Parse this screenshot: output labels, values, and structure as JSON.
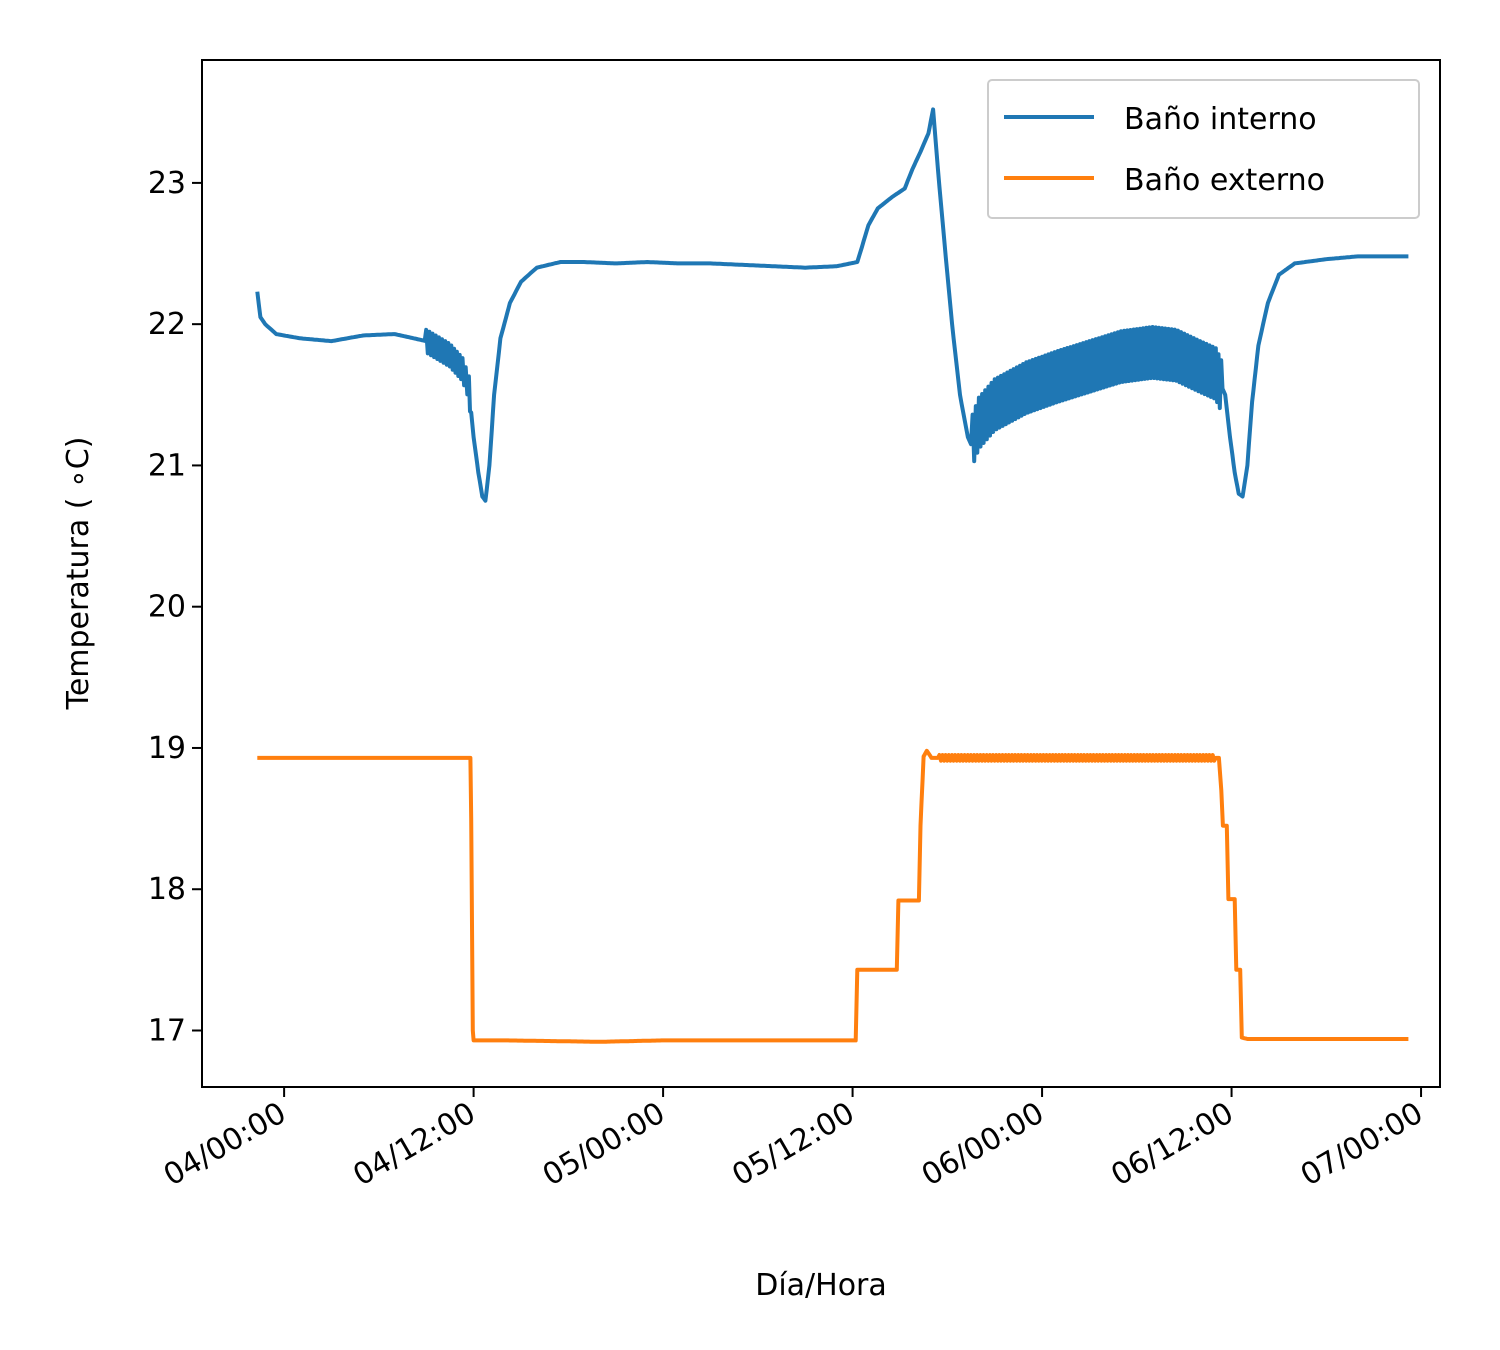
{
  "chart_data": {
    "type": "line",
    "xlabel": "Día/Hora",
    "ylabel": "Temperatura ($^\\circ$C)",
    "ylabel_display": "Temperatura ( ∘C)",
    "x_unit": "hours since 04/00:00",
    "xlim": [
      -5.2,
      73.2
    ],
    "ylim": [
      16.6,
      23.87
    ],
    "x_ticks": [
      {
        "value": 0,
        "label": "04/00:00"
      },
      {
        "value": 12,
        "label": "04/12:00"
      },
      {
        "value": 24,
        "label": "05/00:00"
      },
      {
        "value": 36,
        "label": "05/12:00"
      },
      {
        "value": 48,
        "label": "06/00:00"
      },
      {
        "value": 60,
        "label": "06/12:00"
      },
      {
        "value": 72,
        "label": "07/00:00"
      }
    ],
    "y_ticks": [
      17,
      18,
      19,
      20,
      21,
      22,
      23
    ],
    "grid": false,
    "legend_position": "top-right",
    "series": [
      {
        "name": "Baño interno",
        "color": "#1f77b4",
        "points": [
          [
            -1.7,
            22.23
          ],
          [
            -1.5,
            22.05
          ],
          [
            -1.2,
            22.0
          ],
          [
            -0.5,
            21.93
          ],
          [
            1,
            21.9
          ],
          [
            3,
            21.88
          ],
          [
            5,
            21.92
          ],
          [
            7,
            21.93
          ],
          [
            9,
            21.88
          ],
          [
            10.5,
            21.78
          ],
          [
            11.3,
            21.68
          ],
          [
            11.7,
            21.55
          ],
          [
            12.0,
            21.2
          ],
          [
            12.3,
            20.95
          ],
          [
            12.55,
            20.78
          ],
          [
            12.75,
            20.75
          ],
          [
            13.0,
            21.0
          ],
          [
            13.3,
            21.5
          ],
          [
            13.7,
            21.9
          ],
          [
            14.3,
            22.15
          ],
          [
            15.0,
            22.3
          ],
          [
            16.0,
            22.4
          ],
          [
            17.5,
            22.44
          ],
          [
            19,
            22.44
          ],
          [
            21,
            22.43
          ],
          [
            23,
            22.44
          ],
          [
            25,
            22.43
          ],
          [
            27,
            22.43
          ],
          [
            29,
            22.42
          ],
          [
            31,
            22.41
          ],
          [
            33,
            22.4
          ],
          [
            35,
            22.41
          ],
          [
            36.3,
            22.44
          ],
          [
            36.6,
            22.55
          ],
          [
            37.0,
            22.7
          ],
          [
            37.6,
            22.82
          ],
          [
            38.5,
            22.9
          ],
          [
            39.3,
            22.96
          ],
          [
            39.8,
            23.1
          ],
          [
            40.3,
            23.22
          ],
          [
            40.8,
            23.35
          ],
          [
            41.1,
            23.52
          ],
          [
            41.4,
            23.1
          ],
          [
            41.8,
            22.6
          ],
          [
            42.3,
            22.0
          ],
          [
            42.8,
            21.5
          ],
          [
            43.3,
            21.2
          ],
          [
            43.5,
            21.15
          ],
          [
            44.0,
            21.3
          ],
          [
            45.0,
            21.43
          ],
          [
            47.0,
            21.55
          ],
          [
            49.0,
            21.63
          ],
          [
            51.0,
            21.7
          ],
          [
            53.0,
            21.77
          ],
          [
            55.0,
            21.8
          ],
          [
            56.5,
            21.78
          ],
          [
            58.0,
            21.7
          ],
          [
            59.0,
            21.65
          ],
          [
            59.6,
            21.5
          ],
          [
            59.9,
            21.2
          ],
          [
            60.2,
            20.95
          ],
          [
            60.45,
            20.8
          ],
          [
            60.7,
            20.78
          ],
          [
            61.0,
            21.0
          ],
          [
            61.3,
            21.45
          ],
          [
            61.7,
            21.85
          ],
          [
            62.3,
            22.15
          ],
          [
            63.0,
            22.35
          ],
          [
            64.0,
            22.43
          ],
          [
            66.0,
            22.46
          ],
          [
            68.0,
            22.48
          ],
          [
            70.0,
            22.48
          ],
          [
            71.2,
            22.48
          ]
        ],
        "oscillation": [
          {
            "from": 9.0,
            "to": 11.8,
            "amplitude": 0.08
          },
          {
            "from": 43.6,
            "to": 59.4,
            "amplitude": 0.18
          }
        ]
      },
      {
        "name": "Baño externo",
        "color": "#ff7f0e",
        "points": [
          [
            -1.7,
            18.93
          ],
          [
            11.8,
            18.93
          ],
          [
            11.85,
            18.5
          ],
          [
            11.95,
            17.0
          ],
          [
            12.0,
            16.93
          ],
          [
            14,
            16.93
          ],
          [
            20,
            16.92
          ],
          [
            24,
            16.93
          ],
          [
            30,
            16.93
          ],
          [
            34,
            16.93
          ],
          [
            36.2,
            16.93
          ],
          [
            36.3,
            17.43
          ],
          [
            38.8,
            17.43
          ],
          [
            38.9,
            17.92
          ],
          [
            40.2,
            17.92
          ],
          [
            40.3,
            18.45
          ],
          [
            40.5,
            18.94
          ],
          [
            40.7,
            18.98
          ],
          [
            41.0,
            18.93
          ],
          [
            47,
            18.93
          ],
          [
            59.2,
            18.93
          ],
          [
            59.35,
            18.7
          ],
          [
            59.45,
            18.45
          ],
          [
            59.7,
            18.45
          ],
          [
            59.8,
            17.93
          ],
          [
            60.2,
            17.93
          ],
          [
            60.3,
            17.43
          ],
          [
            60.55,
            17.43
          ],
          [
            60.65,
            16.95
          ],
          [
            61.0,
            16.94
          ],
          [
            71.2,
            16.94
          ]
        ],
        "oscillation": [
          {
            "from": 41.5,
            "to": 59.0,
            "amplitude": 0.02
          }
        ]
      }
    ]
  }
}
